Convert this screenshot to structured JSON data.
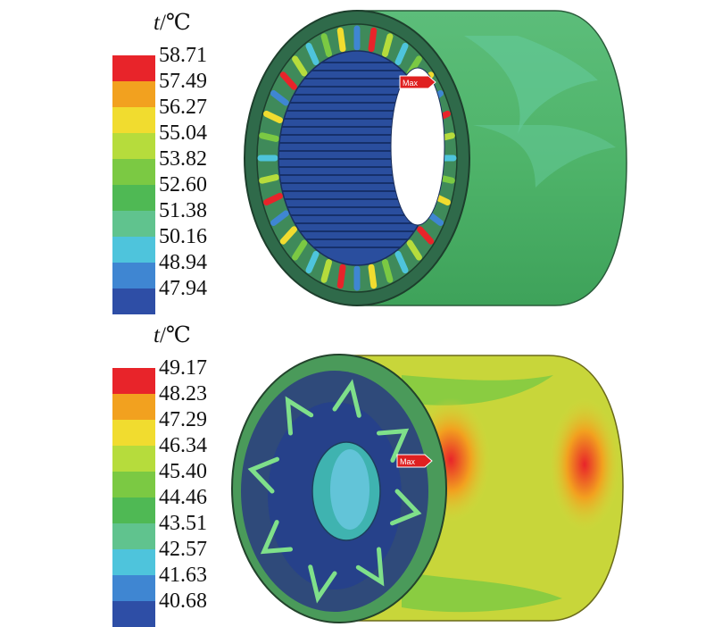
{
  "panels": [
    {
      "unit_symbol": "t",
      "unit_suffix": "/℃",
      "legend": {
        "ticks": [
          "58.71",
          "57.49",
          "56.27",
          "55.04",
          "53.82",
          "52.60",
          "51.38",
          "50.16",
          "48.94",
          "47.94"
        ],
        "colors": [
          "#e8242a",
          "#f2a11f",
          "#f1dc2f",
          "#b6dc3c",
          "#7bc943",
          "#4fb954",
          "#60c38e",
          "#4ec4dc",
          "#3f86d2",
          "#2e4ea6"
        ]
      },
      "max_tag": "Max"
    },
    {
      "unit_symbol": "t",
      "unit_suffix": "/℃",
      "legend": {
        "ticks": [
          "49.17",
          "48.23",
          "47.29",
          "46.34",
          "45.40",
          "44.46",
          "43.51",
          "42.57",
          "41.63",
          "40.68"
        ],
        "colors": [
          "#e8242a",
          "#f2a11f",
          "#f1dc2f",
          "#b6dc3c",
          "#7bc943",
          "#4fb954",
          "#60c38e",
          "#4ec4dc",
          "#3f86d2",
          "#2e4ea6"
        ]
      },
      "max_tag": "Max"
    }
  ]
}
